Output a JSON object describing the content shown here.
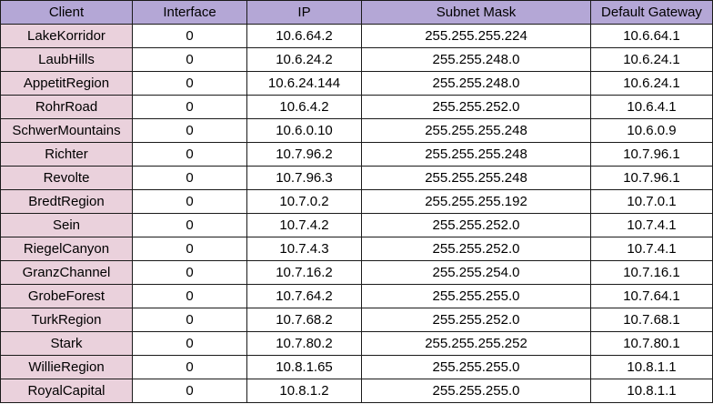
{
  "colors": {
    "header_bg": "#b4a7d6",
    "client_bg": "#ead1dc",
    "cell_bg": "#ffffff",
    "border": "#1a1a1a"
  },
  "table": {
    "headers": [
      "Client",
      "Interface",
      "IP",
      "Subnet Mask",
      "Default Gateway"
    ],
    "rows": [
      [
        "LakeKorridor",
        "0",
        "10.6.64.2",
        "255.255.255.224",
        "10.6.64.1"
      ],
      [
        "LaubHills",
        "0",
        "10.6.24.2",
        "255.255.248.0",
        "10.6.24.1"
      ],
      [
        "AppetitRegion",
        "0",
        "10.6.24.144",
        "255.255.248.0",
        "10.6.24.1"
      ],
      [
        "RohrRoad",
        "0",
        "10.6.4.2",
        "255.255.252.0",
        "10.6.4.1"
      ],
      [
        "SchwerMountains",
        "0",
        "10.6.0.10",
        "255.255.255.248",
        "10.6.0.9"
      ],
      [
        "Richter",
        "0",
        "10.7.96.2",
        "255.255.255.248",
        "10.7.96.1"
      ],
      [
        "Revolte",
        "0",
        "10.7.96.3",
        "255.255.255.248",
        "10.7.96.1"
      ],
      [
        "BredtRegion",
        "0",
        "10.7.0.2",
        "255.255.255.192",
        "10.7.0.1"
      ],
      [
        "Sein",
        "0",
        "10.7.4.2",
        "255.255.252.0",
        "10.7.4.1"
      ],
      [
        "RiegelCanyon",
        "0",
        "10.7.4.3",
        "255.255.252.0",
        "10.7.4.1"
      ],
      [
        "GranzChannel",
        "0",
        "10.7.16.2",
        "255.255.254.0",
        "10.7.16.1"
      ],
      [
        "GrobeForest",
        "0",
        "10.7.64.2",
        "255.255.255.0",
        "10.7.64.1"
      ],
      [
        "TurkRegion",
        "0",
        "10.7.68.2",
        "255.255.252.0",
        "10.7.68.1"
      ],
      [
        "Stark",
        "0",
        "10.7.80.2",
        "255.255.255.252",
        "10.7.80.1"
      ],
      [
        "WillieRegion",
        "0",
        "10.8.1.65",
        "255.255.255.0",
        "10.8.1.1"
      ],
      [
        "RoyalCapital",
        "0",
        "10.8.1.2",
        "255.255.255.0",
        "10.8.1.1"
      ]
    ]
  }
}
